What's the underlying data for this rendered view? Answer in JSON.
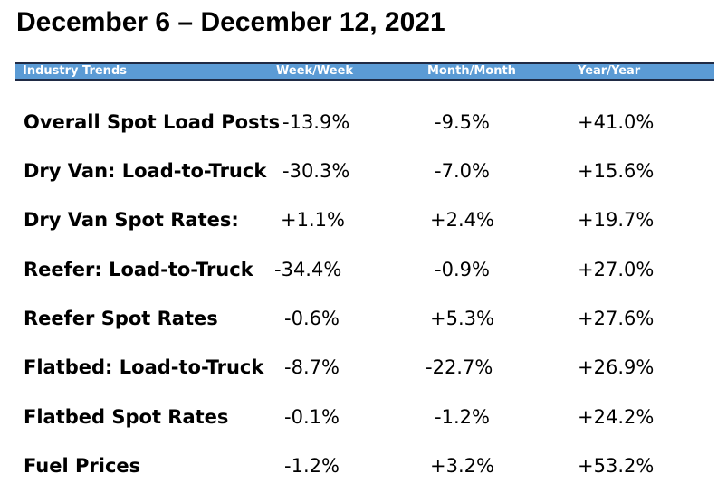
{
  "title": "December 6 – December 12, 2021",
  "table": {
    "headers": [
      "Industry Trends",
      "Week/Week",
      "Month/Month",
      "Year/Year"
    ],
    "rows": [
      {
        "label": "Overall Spot Load Posts",
        "week": "-13.9%",
        "month": "-9.5%",
        "year": "+41.0%"
      },
      {
        "label": "Dry Van: Load-to-Truck",
        "week": "-30.3%",
        "month": "-7.0%",
        "year": "+15.6%"
      },
      {
        "label": "Dry Van Spot Rates:",
        "week": "+1.1%",
        "month": "+2.4%",
        "year": "+19.7%"
      },
      {
        "label": "Reefer: Load-to-Truck",
        "week": "-34.4%",
        "month": "-0.9%",
        "year": "+27.0%"
      },
      {
        "label": "Reefer Spot Rates",
        "week": "-0.6%",
        "month": "+5.3%",
        "year": "+27.6%"
      },
      {
        "label": "Flatbed: Load-to-Truck",
        "week": "-8.7%",
        "month": "-22.7%",
        "year": "+26.9%"
      },
      {
        "label": "Flatbed Spot Rates",
        "week": "-0.1%",
        "month": "-1.2%",
        "year": "+24.2%"
      },
      {
        "label": "Fuel Prices",
        "week": "-1.2%",
        "month": "+3.2%",
        "year": "+53.2%"
      }
    ]
  }
}
